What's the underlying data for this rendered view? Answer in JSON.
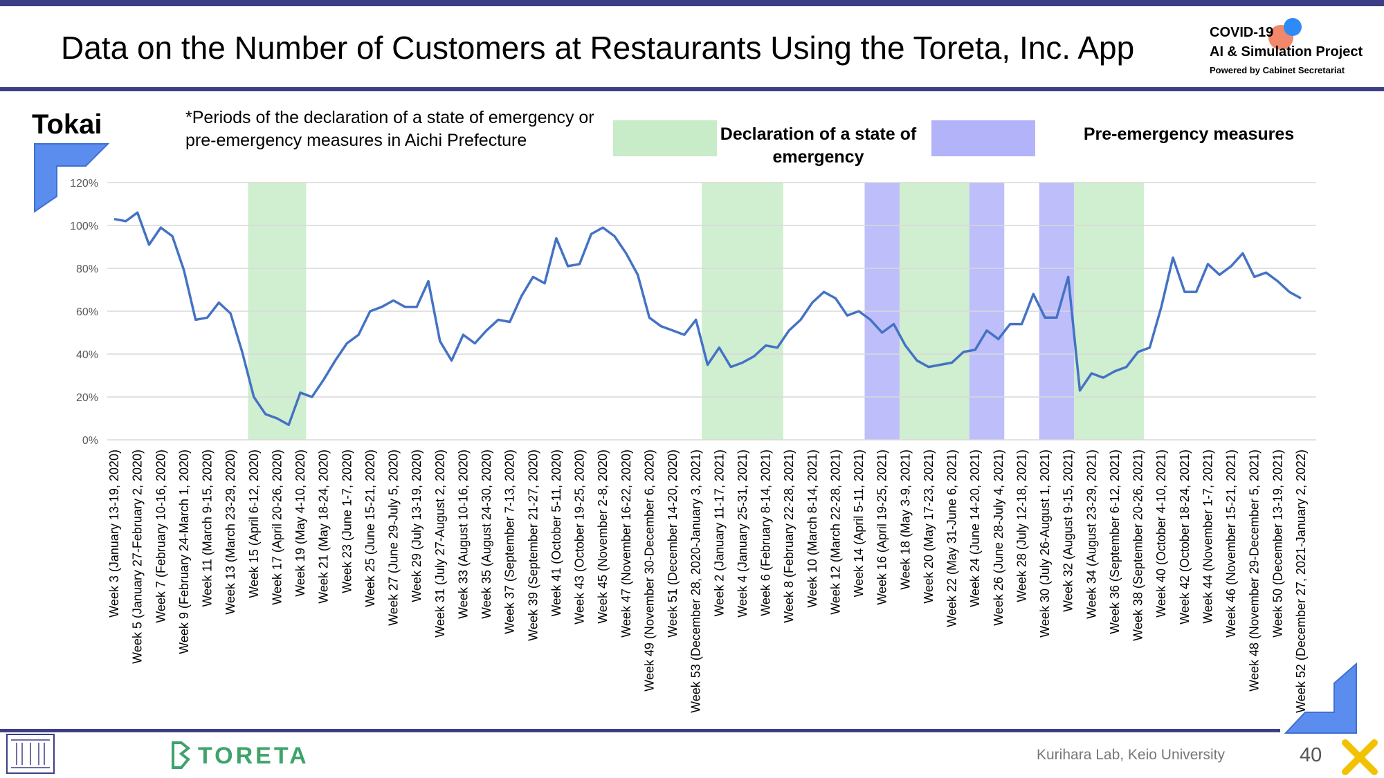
{
  "header": {
    "title": "Data on the Number of Customers at Restaurants Using the Toreta, Inc. App",
    "logo_line1": "COVID-19",
    "logo_line2": "AI & Simulation Project",
    "logo_line3": "Powered by Cabinet Secretariat"
  },
  "region": "Tokai",
  "note": "*Periods of the declaration of a state of emergency or pre-emergency measures in Aichi Prefecture",
  "legend": {
    "emergency_label": "Declaration of a state of emergency",
    "pre_emergency_label": "Pre-emergency measures",
    "emergency_color": "#c8ebc8",
    "pre_emergency_color": "#b3b3fa"
  },
  "footer": {
    "lab": "Kurihara Lab, Keio University",
    "page": "40",
    "brand": "TORETA"
  },
  "chart_data": {
    "type": "line",
    "title": "",
    "xlabel": "",
    "ylabel": "",
    "ylim": [
      0,
      120
    ],
    "y_ticks": [
      "0%",
      "20%",
      "40%",
      "60%",
      "80%",
      "100%",
      "120%"
    ],
    "grid": true,
    "line_color": "#4472c4",
    "x_labels": [
      "Week 3 (January 13-19, 2020)",
      "Week 5 (January 27-February 2, 2020)",
      "Week 7 (February 10-16, 2020)",
      "Week 9 (February 24-March 1, 2020)",
      "Week 11 (March 9-15, 2020)",
      "Week 13 (March 23-29, 2020)",
      "Week 15 (April 6-12, 2020)",
      "Week 17 (April 20-26, 2020)",
      "Week 19 (May 4-10, 2020)",
      "Week 21 (May 18-24, 2020)",
      "Week 23 (June 1-7, 2020)",
      "Week 25 (June 15-21, 2020)",
      "Week 27 (June 29-July 5, 2020)",
      "Week 29 (July 13-19, 2020)",
      "Week 31 (July 27-August 2, 2020)",
      "Week 33 (August 10-16, 2020)",
      "Week 35 (August 24-30, 2020)",
      "Week 37 (September 7-13, 2020)",
      "Week 39 (September 21-27, 2020)",
      "Week 41 (October 5-11, 2020)",
      "Week 43 (October 19-25, 2020)",
      "Week 45 (November 2-8, 2020)",
      "Week 47 (November 16-22, 2020)",
      "Week 49 (November 30-December 6, 2020)",
      "Week 51 (December 14-20, 2020)",
      "Week 53 (December 28, 2020-January 3, 2021)",
      "Week 2 (January 11-17, 2021)",
      "Week 4 (January 25-31, 2021)",
      "Week 6 (February 8-14, 2021)",
      "Week 8 (February 22-28, 2021)",
      "Week 10 (March 8-14, 2021)",
      "Week 12 (March 22-28, 2021)",
      "Week 14 (April 5-11, 2021)",
      "Week 16 (April 19-25, 2021)",
      "Week 18 (May 3-9, 2021)",
      "Week 20 (May 17-23, 2021)",
      "Week 22 (May 31-June 6, 2021)",
      "Week 24 (June 14-20, 2021)",
      "Week 26 (June 28-July 4, 2021)",
      "Week 28 (July 12-18, 2021)",
      "Week 30 (July 26-August 1, 2021)",
      "Week 32 (August 9-15, 2021)",
      "Week 34 (August 23-29, 2021)",
      "Week 36 (September 6-12, 2021)",
      "Week 38 (September 20-26, 2021)",
      "Week 40 (October 4-10, 2021)",
      "Week 42 (October 18-24, 2021)",
      "Week 44 (November 1-7, 2021)",
      "Week 46 (November 15-21, 2021)",
      "Week 48 (November 29-December 5, 2021)",
      "Week 50 (December 13-19, 2021)",
      "Week 52 (December 27, 2021-January 2, 2022)"
    ],
    "values": [
      103,
      102,
      106,
      91,
      99,
      95,
      79,
      56,
      57,
      64,
      59,
      41,
      20,
      12,
      10,
      7,
      22,
      20,
      28,
      37,
      45,
      49,
      60,
      62,
      65,
      62,
      62,
      74,
      46,
      37,
      49,
      45,
      51,
      56,
      55,
      67,
      76,
      73,
      94,
      81,
      82,
      96,
      99,
      95,
      87,
      77,
      57,
      53,
      51,
      49,
      56,
      35,
      43,
      34,
      36,
      39,
      44,
      43,
      51,
      56,
      64,
      69,
      66,
      58,
      60,
      56,
      50,
      54,
      44,
      37,
      34,
      35,
      36,
      41,
      42,
      51,
      47,
      54,
      54,
      68,
      57,
      57,
      76,
      23,
      31,
      29,
      32,
      34,
      41,
      43,
      62,
      85,
      69,
      69,
      82,
      77,
      81,
      87,
      76,
      78,
      74,
      69,
      66
    ],
    "shaded_periods": [
      {
        "type": "emergency",
        "start": 12.0,
        "end": 17.0
      },
      {
        "type": "emergency",
        "start": 51.0,
        "end": 58.0
      },
      {
        "type": "pre_emergency",
        "start": 65.0,
        "end": 68.0
      },
      {
        "type": "emergency",
        "start": 68.0,
        "end": 74.0
      },
      {
        "type": "pre_emergency",
        "start": 74.0,
        "end": 77.0
      },
      {
        "type": "pre_emergency",
        "start": 80.0,
        "end": 83.0
      },
      {
        "type": "emergency",
        "start": 83.0,
        "end": 89.0
      }
    ]
  }
}
